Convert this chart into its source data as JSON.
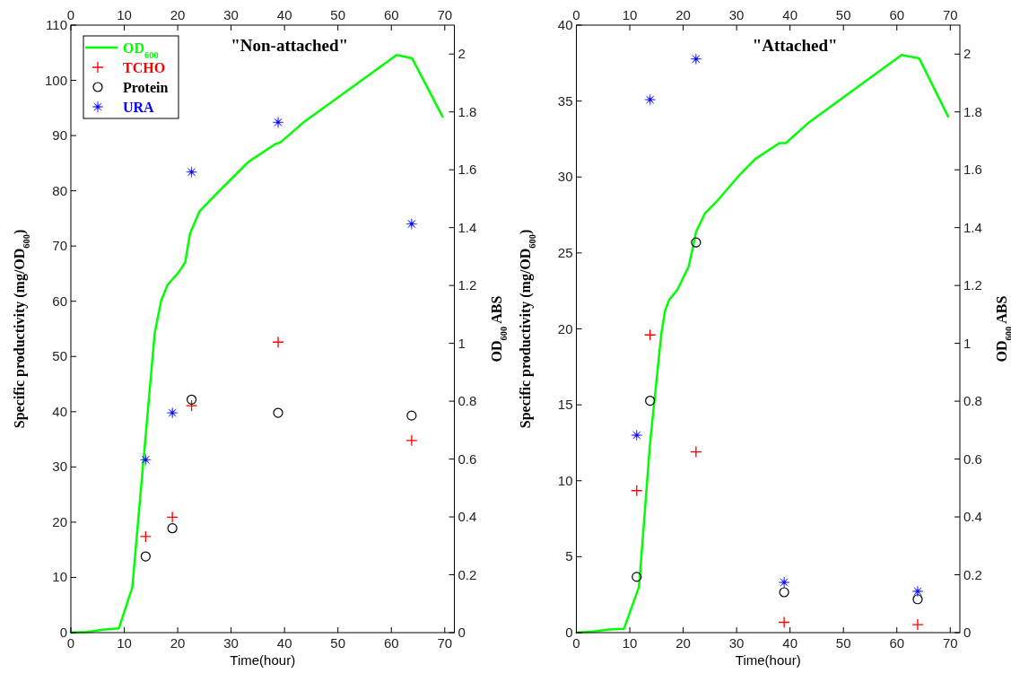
{
  "chart_data": [
    {
      "type": "scatter",
      "title": "\"Non-attached\"",
      "xlabel": "Time(hour)",
      "ylabel": "Specific productivity (mg/OD$_{600}$)",
      "y2label": "OD$_{600}$ ABS",
      "xlim": [
        0,
        71.8
      ],
      "xticks": [
        0,
        10,
        20,
        30,
        40,
        50,
        60,
        70
      ],
      "x2lim": [
        0,
        71.8
      ],
      "x2ticks": [
        0,
        10,
        20,
        30,
        40,
        50,
        60,
        70
      ],
      "ylim": [
        0,
        110
      ],
      "yticks": [
        0,
        10,
        20,
        30,
        40,
        50,
        60,
        70,
        80,
        90,
        100,
        110
      ],
      "y2lim": [
        0,
        2.1
      ],
      "y2ticks": [
        0,
        0.2,
        0.4,
        0.6,
        0.8,
        1,
        1.2,
        1.4,
        1.6,
        1.8,
        2
      ],
      "legend": "top left",
      "series": [
        {
          "name": "OD$_{600}$",
          "type": "line",
          "axis": "y2",
          "color": "#00ff00",
          "marker": "none",
          "x": [
            0,
            3,
            6,
            9,
            11.5,
            15.7,
            16.9,
            18.1,
            20.2,
            21.4,
            22.3,
            24.1,
            28.2,
            33.3,
            38.3,
            39.2,
            43.7,
            61,
            63.9,
            69.6
          ],
          "values": [
            0,
            0.002,
            0.01,
            0.015,
            0.156,
            1.036,
            1.147,
            1.202,
            1.246,
            1.28,
            1.379,
            1.457,
            1.534,
            1.628,
            1.689,
            1.694,
            1.766,
            1.997,
            1.985,
            1.783
          ]
        },
        {
          "name": "TCHO",
          "marker": "cross",
          "color": "#ff0000",
          "x": [
            14,
            19,
            22.6,
            38.8,
            63.8
          ],
          "values": [
            17.4,
            20.9,
            41.1,
            52.6,
            34.8
          ]
        },
        {
          "name": "Protein",
          "marker": "circle",
          "color": "#000000",
          "x": [
            14,
            19,
            22.6,
            38.8,
            63.8
          ],
          "values": [
            13.8,
            18.9,
            42.2,
            39.8,
            39.3
          ]
        },
        {
          "name": "URA",
          "marker": "star",
          "color": "#0000ff",
          "x": [
            14,
            19,
            22.6,
            38.8,
            63.8
          ],
          "values": [
            31.3,
            39.8,
            83.4,
            92.4,
            74
          ]
        }
      ]
    },
    {
      "type": "scatter",
      "title": "\"Attached\"",
      "xlabel": "Time(hour)",
      "ylabel": "Specific productivity (mg/OD$_{600}$)",
      "y2label": "OD$_{600}$ ABS",
      "xlim": [
        0,
        71.8
      ],
      "xticks": [
        0,
        10,
        20,
        30,
        40,
        50,
        60,
        70
      ],
      "x2lim": [
        0,
        71.8
      ],
      "x2ticks": [
        0,
        10,
        20,
        30,
        40,
        50,
        60,
        70
      ],
      "ylim": [
        0,
        40
      ],
      "yticks": [
        0,
        5,
        10,
        15,
        20,
        25,
        30,
        35,
        40
      ],
      "y2lim": [
        0,
        2.1
      ],
      "y2ticks": [
        0,
        0.2,
        0.4,
        0.6,
        0.8,
        1,
        1.2,
        1.4,
        1.6,
        1.8,
        2
      ],
      "series": [
        {
          "type": "line",
          "axis": "y2",
          "color": "#00ff00",
          "marker": "none",
          "x": [
            0,
            3.2,
            6.2,
            8.9,
            11.7,
            12.1,
            13.8,
            15.9,
            16.6,
            17.4,
            18.9,
            21,
            21.8,
            22.4,
            24.1,
            26.2,
            30.7,
            33.4,
            38,
            39.2,
            43.7,
            60.9,
            64.2,
            69.6
          ],
          "values": [
            0,
            0.004,
            0.011,
            0.013,
            0.157,
            0.246,
            0.656,
            1.032,
            1.112,
            1.151,
            1.185,
            1.264,
            1.331,
            1.385,
            1.45,
            1.489,
            1.585,
            1.636,
            1.692,
            1.692,
            1.766,
            1.997,
            1.985,
            1.784
          ]
        },
        {
          "marker": "cross",
          "color": "#ff0000",
          "x": [
            11.3,
            13.8,
            22.4,
            38.9,
            63.9
          ],
          "values": [
            9.35,
            19.6,
            11.9,
            0.68,
            0.53
          ]
        },
        {
          "marker": "circle",
          "color": "#000000",
          "x": [
            11.3,
            13.8,
            22.4,
            38.9,
            63.9
          ],
          "values": [
            3.67,
            15.27,
            25.69,
            2.66,
            2.2
          ]
        },
        {
          "marker": "star",
          "color": "#0000ff",
          "x": [
            11.3,
            13.8,
            22.4,
            38.9,
            63.9
          ],
          "values": [
            13,
            35.09,
            37.77,
            3.31,
            2.72
          ]
        }
      ]
    }
  ]
}
